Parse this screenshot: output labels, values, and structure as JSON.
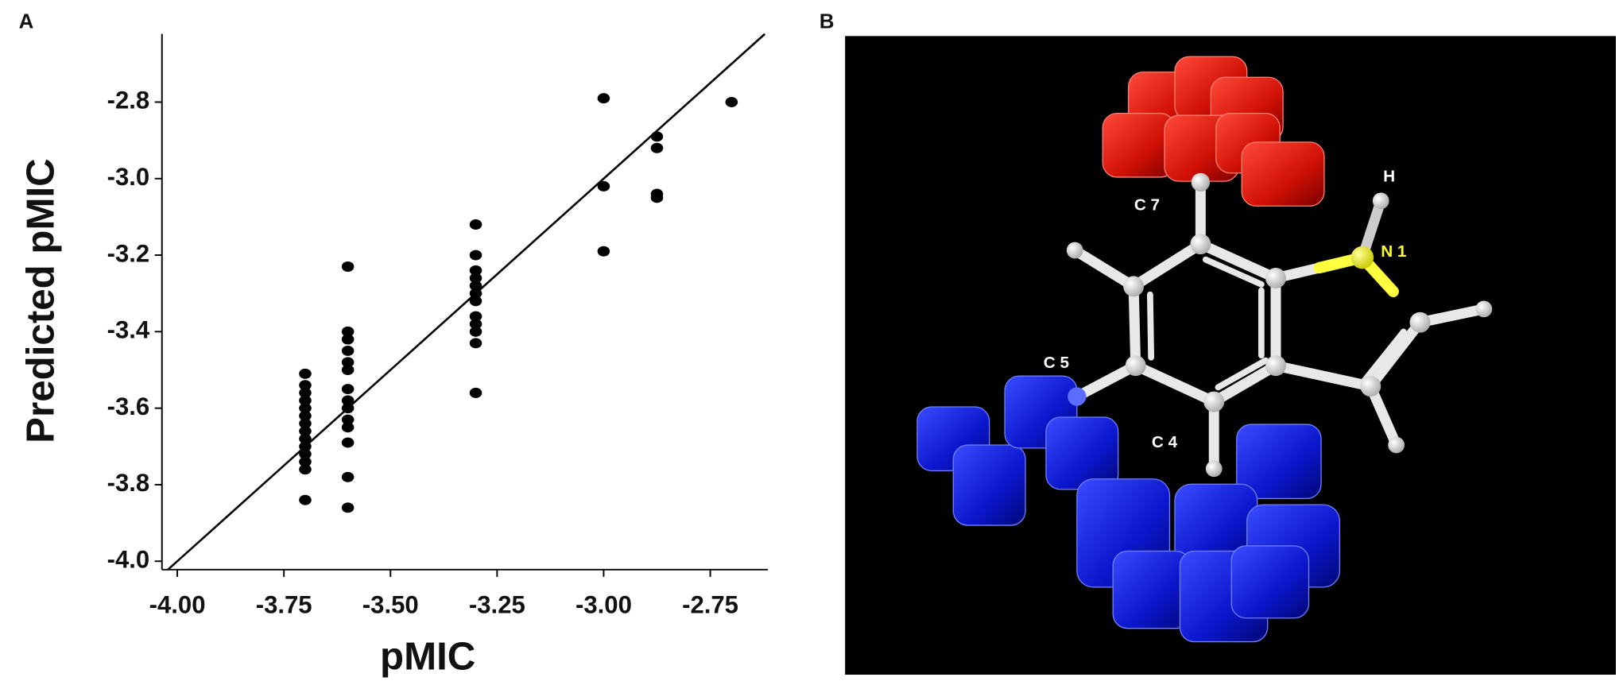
{
  "chart_data": {
    "type": "scatter",
    "panel_label": "A",
    "x_label": "pMIC",
    "y_label": "Predicted pMIC",
    "color": "#000000",
    "x": [
      -3.7,
      -3.7,
      -3.7,
      -3.7,
      -3.7,
      -3.7,
      -3.7,
      -3.7,
      -3.7,
      -3.7,
      -3.7,
      -3.7,
      -3.7,
      -3.7,
      -3.6,
      -3.6,
      -3.6,
      -3.6,
      -3.6,
      -3.6,
      -3.6,
      -3.6,
      -3.6,
      -3.6,
      -3.6,
      -3.6,
      -3.6,
      -3.6,
      -3.3,
      -3.3,
      -3.3,
      -3.3,
      -3.3,
      -3.3,
      -3.3,
      -3.3,
      -3.3,
      -3.3,
      -3.3,
      -3.3,
      -3.0,
      -3.0,
      -3.0,
      -2.875,
      -2.875,
      -2.875,
      -2.875,
      -2.7
    ],
    "values": [
      -3.51,
      -3.54,
      -3.56,
      -3.58,
      -3.6,
      -3.62,
      -3.64,
      -3.66,
      -3.68,
      -3.7,
      -3.72,
      -3.74,
      -3.76,
      -3.84,
      -3.23,
      -3.4,
      -3.42,
      -3.45,
      -3.48,
      -3.5,
      -3.55,
      -3.58,
      -3.6,
      -3.63,
      -3.65,
      -3.69,
      -3.78,
      -3.86,
      -3.12,
      -3.2,
      -3.24,
      -3.26,
      -3.28,
      -3.3,
      -3.32,
      -3.36,
      -3.38,
      -3.4,
      -3.43,
      -3.56,
      -2.79,
      -3.02,
      -3.19,
      -2.89,
      -2.92,
      -3.04,
      -3.05,
      -2.8
    ],
    "xlim": [
      -4.036,
      -2.615
    ],
    "ylim": [
      -4.022,
      -2.622
    ],
    "xticks": [
      {
        "value": -4,
        "label": "-4.00"
      },
      -3.75,
      {
        "value": -3.5,
        "label": "-3.50"
      },
      -3.25,
      {
        "value": -3,
        "label": "-3.00"
      },
      -2.75
    ],
    "yticks": [
      -2.8,
      {
        "value": -3,
        "label": "-3.0"
      },
      -3.2,
      -3.4,
      -3.6,
      -3.8,
      {
        "value": -4,
        "label": "-4.0"
      }
    ],
    "identity_line": true
  },
  "panel_b": {
    "label": "B",
    "atom_labels": [
      "C 7",
      "H",
      "N 1",
      "C 5",
      "C 4"
    ]
  }
}
